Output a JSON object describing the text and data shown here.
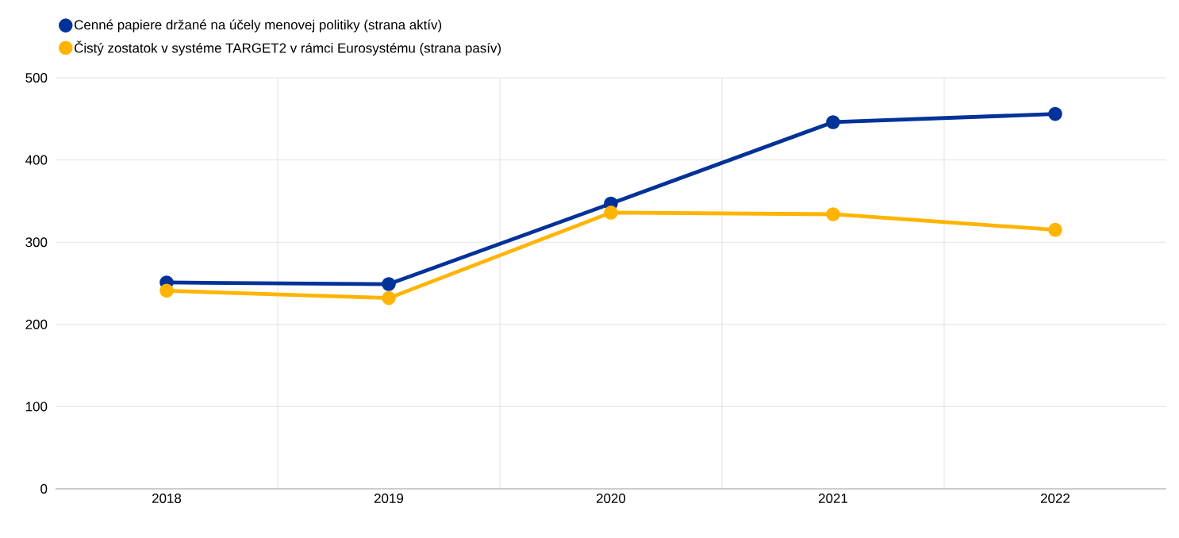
{
  "chart_data": {
    "type": "line",
    "categories": [
      "2018",
      "2019",
      "2020",
      "2021",
      "2022"
    ],
    "series": [
      {
        "name": "Cenné papiere držané na účely menovej politiky (strana aktív)",
        "color": "#003299",
        "values": [
          251,
          249,
          347,
          446,
          456
        ]
      },
      {
        "name": "Čistý zostatok v systéme TARGET2 v rámci Eurosystému (strana pasív)",
        "color": "#ffb400",
        "values": [
          241,
          232,
          336,
          334,
          315
        ]
      }
    ],
    "ylim": [
      0,
      500
    ],
    "yticks": [
      0,
      100,
      200,
      300,
      400,
      500
    ],
    "grid": true,
    "legend": "top left",
    "marker": "circle",
    "line_style": "solid"
  }
}
